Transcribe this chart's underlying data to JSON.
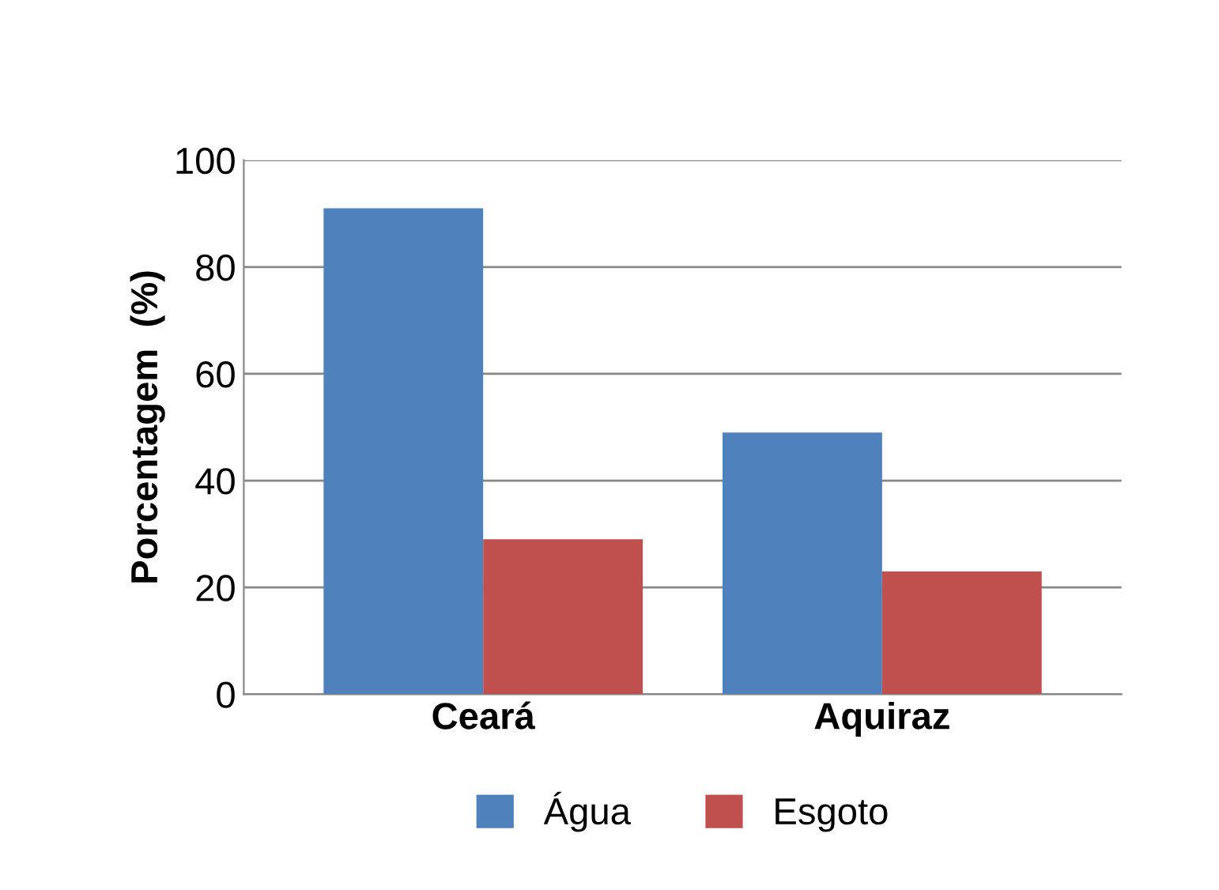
{
  "chart_data": {
    "type": "bar",
    "categories": [
      "Ceará",
      "Aquiraz"
    ],
    "ylabel": "Porcentagem  (%)",
    "series": [
      {
        "name": "Água",
        "color": "#4f81bd",
        "values": [
          91,
          49
        ]
      },
      {
        "name": "Esgoto",
        "color": "#c0504d",
        "values": [
          29,
          23
        ]
      }
    ],
    "ylim": [
      0,
      100
    ],
    "yticks": [
      0,
      20,
      40,
      60,
      80,
      100
    ],
    "grid": "y",
    "legend": "bottom"
  }
}
